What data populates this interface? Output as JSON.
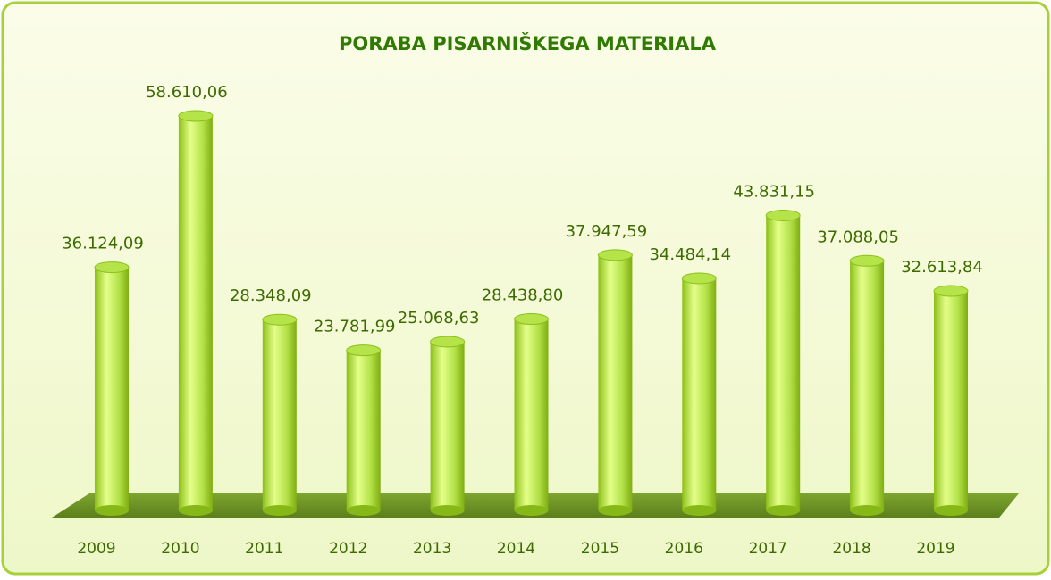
{
  "chart_data": {
    "type": "bar",
    "title": "PORABA PISARNIŠKEGA MATERIALA",
    "categories": [
      "2009",
      "2010",
      "2011",
      "2012",
      "2013",
      "2014",
      "2015",
      "2016",
      "2017",
      "2018",
      "2019"
    ],
    "values": [
      36124.09,
      58610.06,
      28348.09,
      23781.99,
      25068.63,
      28438.8,
      37947.59,
      34484.14,
      43831.15,
      37088.05,
      32613.84
    ],
    "value_labels": [
      "36.124,09",
      "58.610,06",
      "28.348,09",
      "23.781,99",
      "25.068,63",
      "28.438,80",
      "37.947,59",
      "34.484,14",
      "43.831,15",
      "37.088,05",
      "32.613,84"
    ],
    "color": "#b5e34a"
  }
}
